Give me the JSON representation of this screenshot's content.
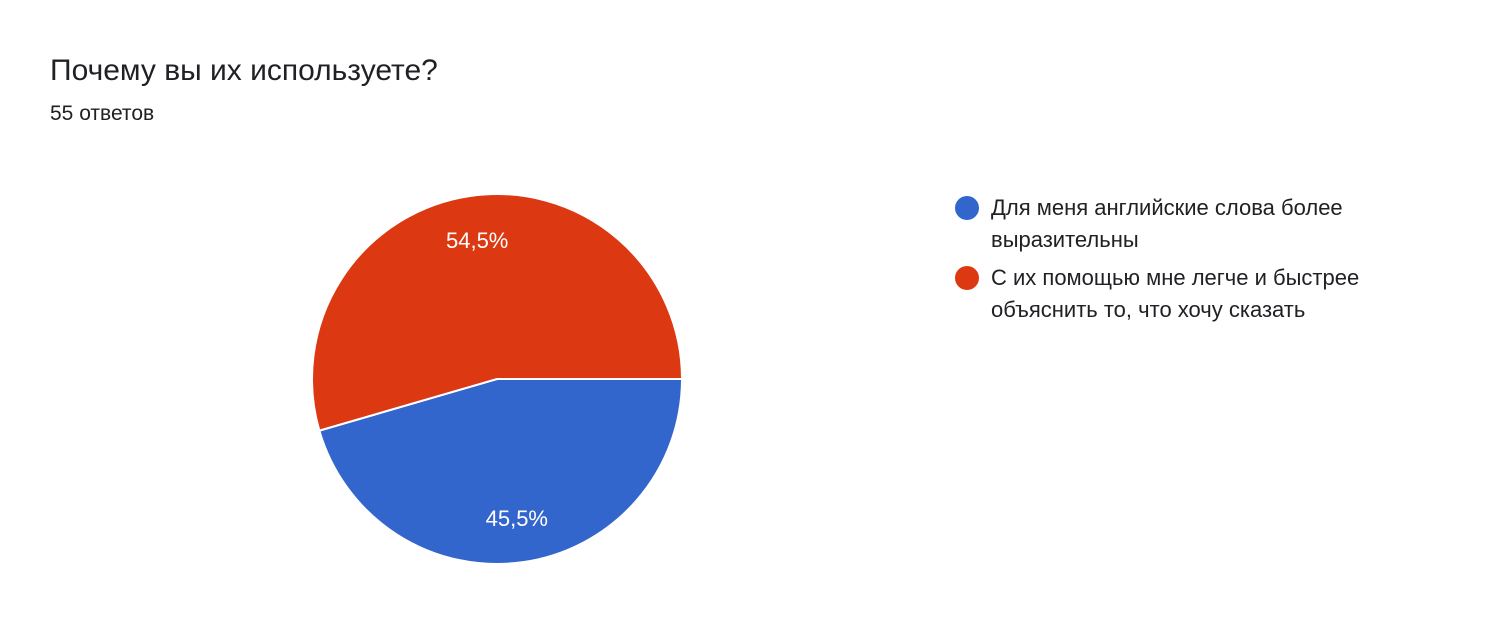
{
  "header": {
    "title": "Почему вы их используете?",
    "responses": "55 ответов"
  },
  "chart_data": {
    "type": "pie",
    "title": "Почему вы их используете?",
    "legend_position": "right",
    "slices": [
      {
        "label": "Для меня английские слова более выразительны",
        "value": 45.5,
        "display": "45,5%",
        "color": "#3366cc"
      },
      {
        "label": "С их помощью мне легче и быстрее объяснить то, что хочу сказать",
        "value": 54.5,
        "display": "54,5%",
        "color": "#dc3912"
      }
    ]
  }
}
